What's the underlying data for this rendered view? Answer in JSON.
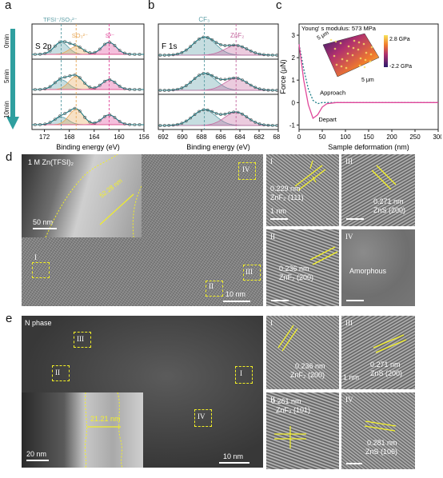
{
  "panels": {
    "a": {
      "letter": "a",
      "title": "S 2p",
      "xlabel": "Binding energy (eV)",
      "xticks": [
        "172",
        "168",
        "164",
        "160",
        "156"
      ],
      "time_labels": [
        "0min",
        "5min",
        "10min"
      ],
      "peak_labels": [
        "TFSI⁻/SO₃²⁻",
        "SO₃²⁻",
        "S²⁻"
      ],
      "colors": {
        "tfsi": "#5c9ea6",
        "so3": "#e8a95a",
        "s2": "#e0479a",
        "envelope": "#1b7c86",
        "arrow": "#2f9f9f"
      }
    },
    "b": {
      "letter": "b",
      "title": "F 1s",
      "xlabel": "Binding energy (eV)",
      "xticks": [
        "692",
        "690",
        "688",
        "686",
        "684",
        "682",
        "680"
      ],
      "peak_labels": [
        "CF₃",
        "ZnF₂"
      ],
      "colors": {
        "cf3": "#5c9ea6",
        "znf2": "#c56aa0"
      }
    },
    "c": {
      "letter": "c",
      "modulus_text": "Young' s modulus: 573 MPa",
      "ylabel": "Force (μN)",
      "xlabel": "Sample deformation (nm)",
      "xticks": [
        "0",
        "50",
        "100",
        "150",
        "200",
        "250",
        "300"
      ],
      "yticks": [
        "-1",
        "0",
        "1",
        "2",
        "3"
      ],
      "legend": [
        "Approach",
        "Depart"
      ],
      "colorbar": [
        "2.8 GPa",
        "-2.2 GPa"
      ],
      "inset_axes": [
        "5 μm",
        "5 μm"
      ]
    },
    "d": {
      "letter": "d",
      "label": "1 M Zn(TFSI)₂",
      "thickness": "52.28 nm",
      "inset_scale": "50 nm",
      "main_scale": "10 nm",
      "regions": [
        "I",
        "II",
        "III",
        "IV"
      ],
      "hrtem": [
        {
          "roman": "I",
          "text": "0.229 nm",
          "phase": "ZnF₂ (111)",
          "scale": "1 nm"
        },
        {
          "roman": "III",
          "text": "0.271 nm",
          "phase": "ZnS (200)"
        },
        {
          "roman": "II",
          "text": "0.236 nm",
          "phase": "ZnF₂ (200)"
        },
        {
          "roman": "IV",
          "text": "Amorphous"
        }
      ]
    },
    "e": {
      "letter": "e",
      "label": "N phase",
      "thickness": "21.21 nm",
      "inset_scale": "20 nm",
      "main_scale": "10 nm",
      "regions": [
        "I",
        "II",
        "III",
        "IV"
      ],
      "hrtem": [
        {
          "roman": "I",
          "text": "0.236 nm",
          "phase": "ZnF₂ (200)"
        },
        {
          "roman": "III",
          "text": "0.271 nm",
          "phase": "ZnS (200)",
          "scale": "1 nm"
        },
        {
          "roman": "II",
          "text": "0.261 nm",
          "phase": "ZnF₂ (101)"
        },
        {
          "roman": "IV",
          "text": "0.281 nm",
          "phase": "ZnS (106)"
        }
      ]
    }
  },
  "chart_data": [
    {
      "type": "line",
      "panel": "a",
      "title": "S 2p",
      "xlabel": "Binding energy (eV)",
      "xlim": [
        174,
        156
      ],
      "row_labels": [
        "0min",
        "5min",
        "10min"
      ],
      "peaks": [
        {
          "name": "TFSI⁻/SO₃²⁻",
          "center": 169.3
        },
        {
          "name": "SO₃²⁻",
          "center": 166.9
        },
        {
          "name": "S²⁻",
          "center": 161.6
        }
      ]
    },
    {
      "type": "line",
      "panel": "b",
      "title": "F 1s",
      "xlabel": "Binding energy (eV)",
      "xlim": [
        692.5,
        680
      ],
      "peaks": [
        {
          "name": "CF₃",
          "center": 687.7
        },
        {
          "name": "ZnF₂",
          "center": 684.4
        }
      ]
    },
    {
      "type": "line",
      "panel": "c",
      "xlabel": "Sample deformation (nm)",
      "ylabel": "Force (μN)",
      "xlim": [
        0,
        300
      ],
      "ylim": [
        -1.2,
        3.5
      ],
      "series": [
        {
          "name": "Approach",
          "x": [
            0,
            10,
            20,
            30,
            40,
            50,
            60,
            80,
            120,
            200,
            300
          ],
          "y": [
            2.6,
            1.5,
            0.6,
            0.1,
            -0.05,
            0.0,
            0.0,
            0.0,
            0.0,
            0.0,
            0.0
          ]
        },
        {
          "name": "Depart",
          "x": [
            0,
            10,
            20,
            30,
            40,
            50,
            60,
            80,
            120,
            200,
            300
          ],
          "y": [
            2.6,
            1.0,
            -0.1,
            -0.7,
            -0.55,
            -0.2,
            -0.05,
            0.0,
            0.0,
            0.0,
            0.0
          ]
        }
      ],
      "annotation": "Young' s modulus: 573 MPa"
    }
  ]
}
